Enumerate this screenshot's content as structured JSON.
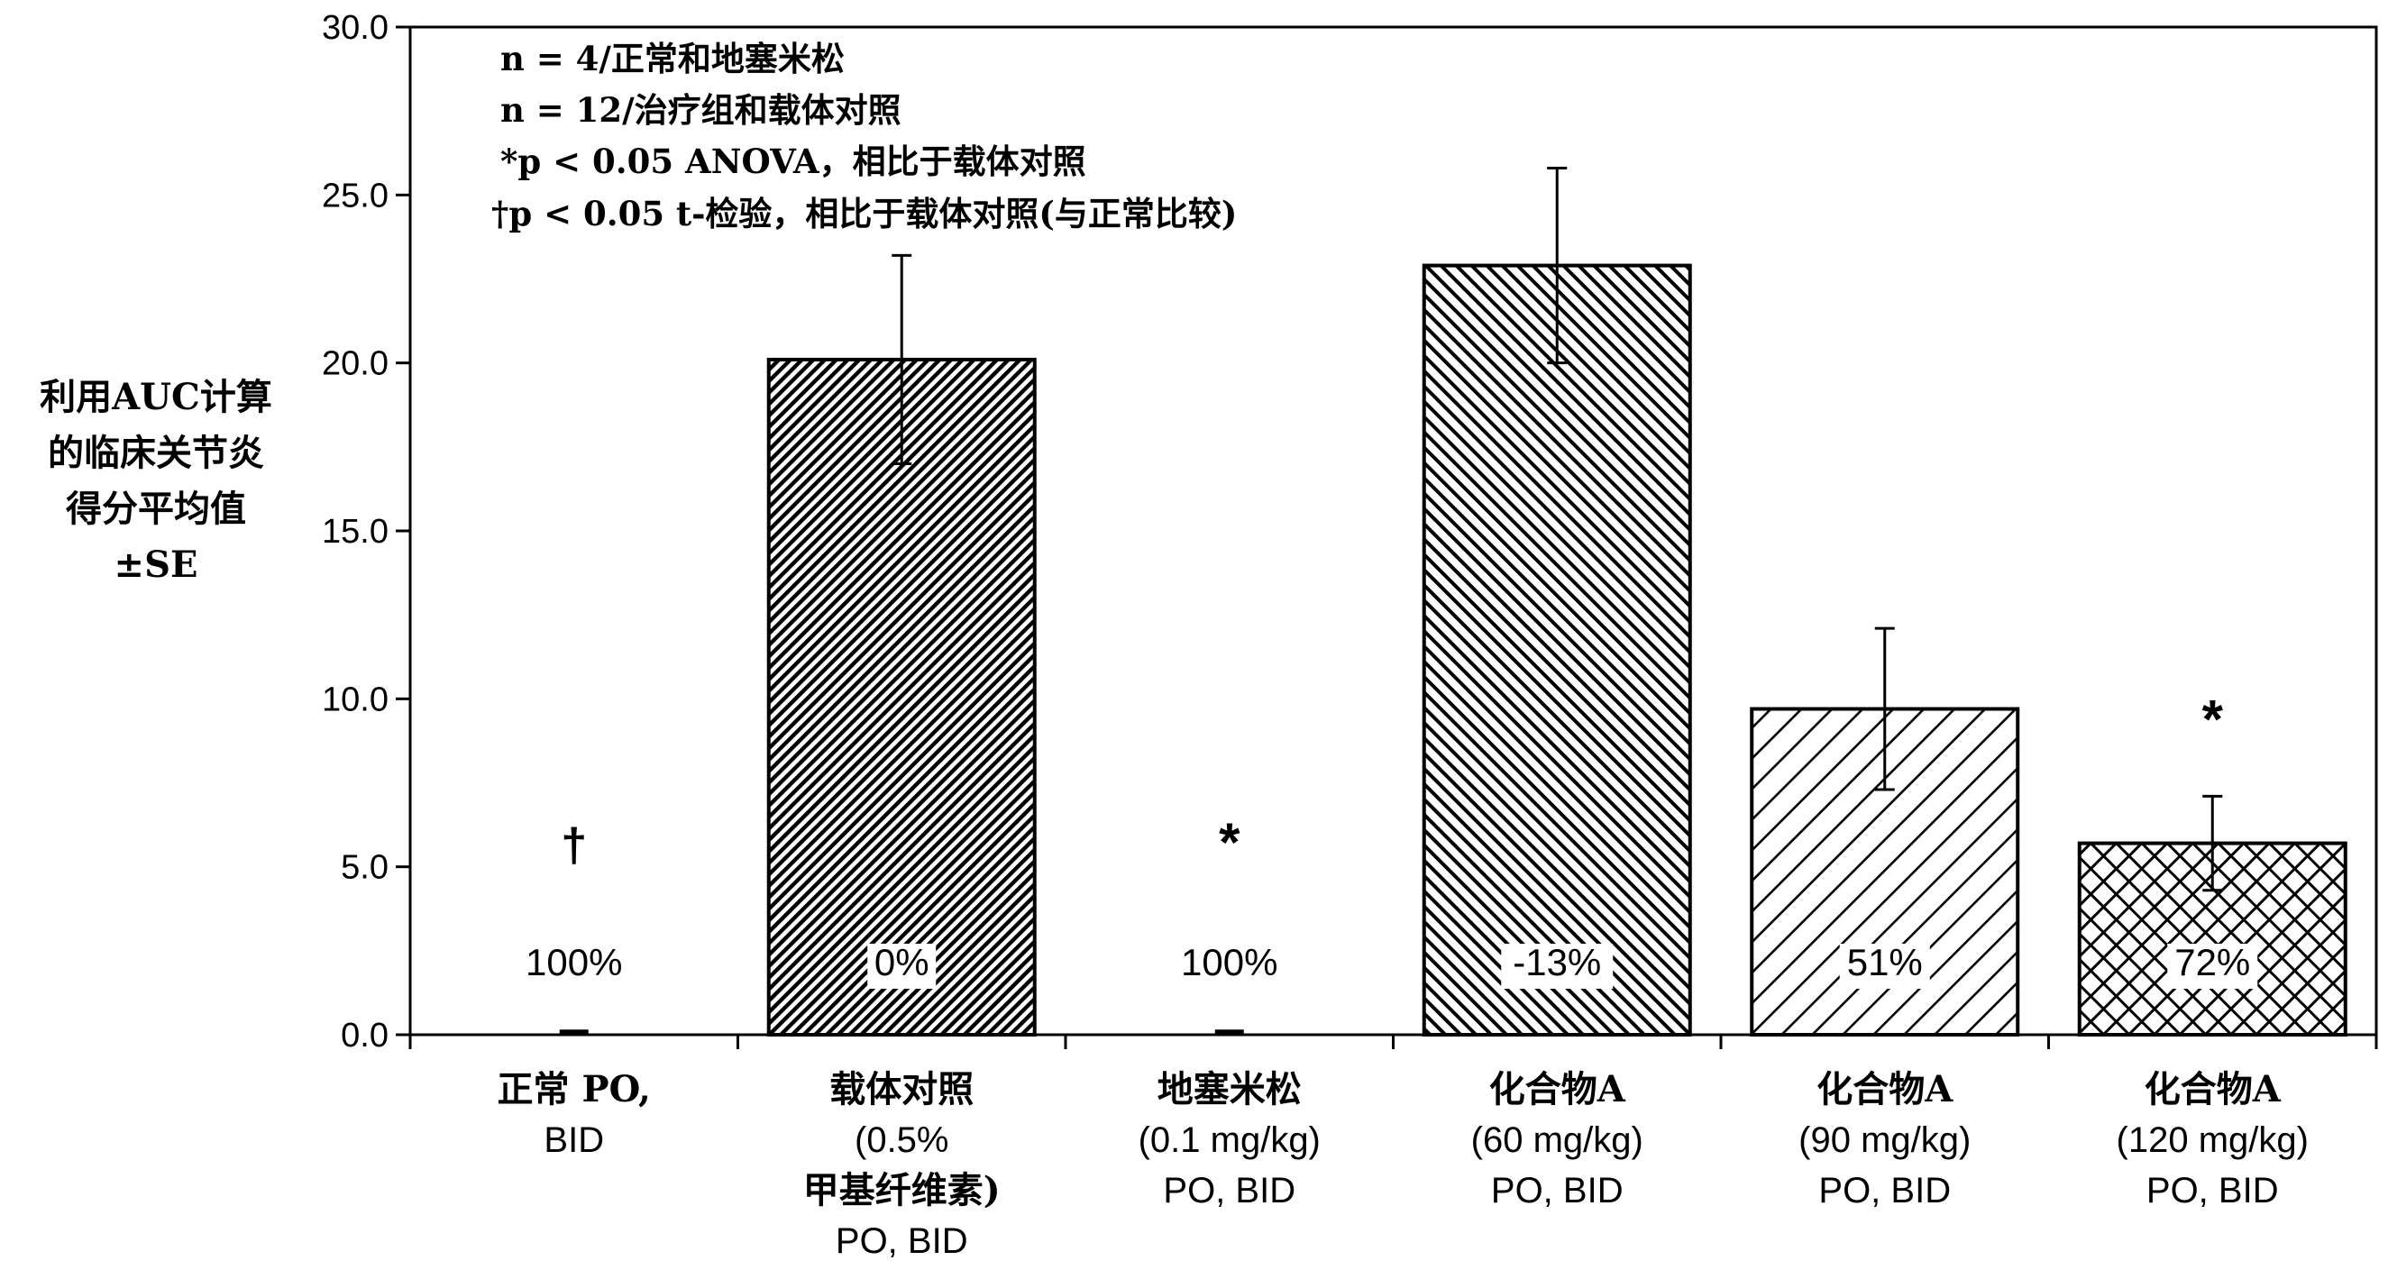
{
  "chart_data": {
    "type": "bar",
    "ylabel_lines": [
      "利用AUC计算",
      "的临床关节炎",
      "得分平均值",
      "±SE"
    ],
    "ylim": [
      0,
      30
    ],
    "yticks": [
      "0.0",
      "5.0",
      "10.0",
      "15.0",
      "20.0",
      "25.0",
      "30.0"
    ],
    "categories": [
      [
        "正常 PO,",
        "BID"
      ],
      [
        "载体对照",
        "(0.5%",
        "甲基纤维素)",
        "PO, BID"
      ],
      [
        "地塞米松",
        "(0.1 mg/kg)",
        "PO, BID"
      ],
      [
        "化合物A",
        "(60 mg/kg)",
        "PO, BID"
      ],
      [
        "化合物A",
        "(90 mg/kg)",
        "PO, BID"
      ],
      [
        "化合物A",
        "(120 mg/kg)",
        "PO, BID"
      ]
    ],
    "values": [
      0.1,
      20.1,
      0.1,
      22.9,
      9.7,
      5.7
    ],
    "errors": [
      null,
      3.1,
      null,
      2.9,
      2.4,
      1.4
    ],
    "percent_labels": [
      "100%",
      "0%",
      "100%",
      "-13%",
      "51%",
      "72%"
    ],
    "significance_marks": [
      "†",
      "",
      "*",
      "",
      "",
      "*"
    ],
    "annotations": [
      "n = 4/正常和地塞米松",
      "n = 12/治疗组和载体对照",
      "*p < 0.05  ANOVA，相比于载体对照",
      "†p < 0.05 t-检验，相比于载体对照(与正常比较)"
    ],
    "patterns": [
      "none",
      "dense-back",
      "none",
      "medium-forward",
      "sparse-back",
      "crosshatch"
    ],
    "grid": false,
    "legend": "none"
  }
}
